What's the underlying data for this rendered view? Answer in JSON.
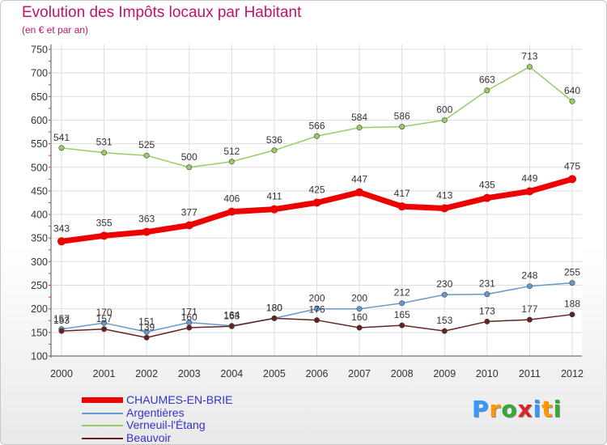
{
  "header": {
    "title": "Evolution des Impôts locaux par Habitant",
    "subtitle": "(en € et par an)"
  },
  "legend": [
    {
      "label": "CHAUMES-EN-BRIE",
      "color": "#ee0000"
    },
    {
      "label": "Argentières",
      "color": "#6699cc"
    },
    {
      "label": "Verneuil-l'Étang",
      "color": "#99cc66"
    },
    {
      "label": "Beauvoir",
      "color": "#662222"
    }
  ],
  "logo": {
    "text": "Proxiti"
  },
  "chart_data": {
    "type": "line",
    "title": "Evolution des Impôts locaux par Habitant",
    "subtitle": "(en € et par an)",
    "x": [
      2000,
      2001,
      2002,
      2003,
      2004,
      2005,
      2006,
      2007,
      2008,
      2009,
      2010,
      2011,
      2012
    ],
    "ylim": [
      100,
      750
    ],
    "yticks": [
      100,
      150,
      200,
      250,
      300,
      350,
      400,
      450,
      500,
      550,
      600,
      650,
      700,
      750
    ],
    "grid": true,
    "legend_position": "bottom-left",
    "series": [
      {
        "name": "Verneuil-l'Étang",
        "color": "#99cc66",
        "values": [
          541,
          531,
          525,
          500,
          512,
          536,
          566,
          584,
          586,
          600,
          663,
          713,
          640
        ]
      },
      {
        "name": "Argentières",
        "color": "#6699cc",
        "values": [
          157,
          170,
          151,
          171,
          164,
          180,
          200,
          200,
          212,
          230,
          231,
          248,
          255
        ]
      },
      {
        "name": "Beauvoir",
        "color": "#662222",
        "values": [
          153,
          157,
          139,
          160,
          163,
          180,
          176,
          160,
          165,
          153,
          173,
          177,
          188
        ]
      },
      {
        "name": "CHAUMES-EN-BRIE",
        "color": "#ee0000",
        "values": [
          343,
          355,
          363,
          377,
          406,
          411,
          425,
          447,
          417,
          413,
          435,
          449,
          475
        ]
      }
    ]
  }
}
